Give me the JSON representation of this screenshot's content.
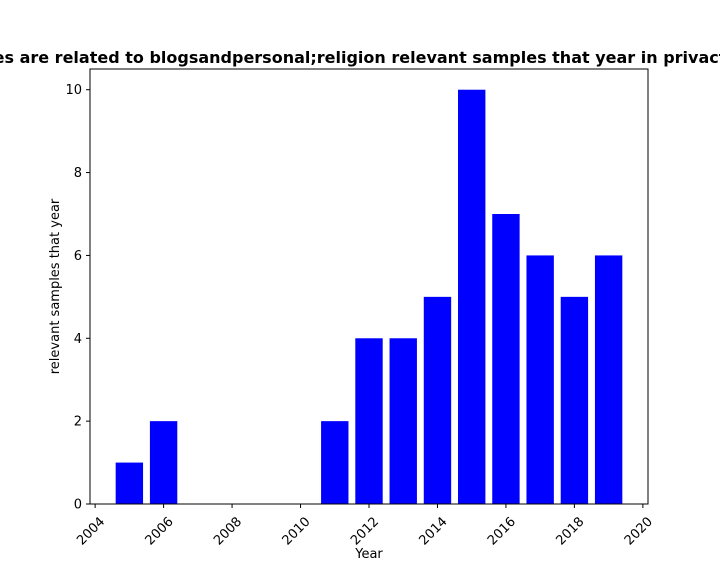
{
  "chart_data": {
    "type": "bar",
    "title": "es are related to blogsandpersonal;religion relevant samples that year in privact",
    "xlabel": "Year",
    "ylabel": "relevant samples that year",
    "x": [
      2005,
      2006,
      2011,
      2012,
      2013,
      2014,
      2015,
      2016,
      2017,
      2018,
      2019
    ],
    "values": [
      1,
      2,
      2,
      4,
      4,
      5,
      10,
      7,
      6,
      5,
      6
    ],
    "xlim": [
      2003.85,
      2020.15
    ],
    "ylim": [
      0,
      10.5
    ],
    "x_ticks": [
      2004,
      2006,
      2008,
      2010,
      2012,
      2014,
      2016,
      2018,
      2020
    ],
    "x_tick_labels": [
      "2004",
      "2006",
      "2008",
      "2010",
      "2012",
      "2014",
      "2016",
      "2018",
      "2020"
    ],
    "y_ticks": [
      0,
      2,
      4,
      6,
      8,
      10
    ],
    "y_tick_labels": [
      "0",
      "2",
      "4",
      "6",
      "8",
      "10"
    ],
    "bar_color": "#0000ff",
    "grid": false,
    "legend": "none"
  }
}
